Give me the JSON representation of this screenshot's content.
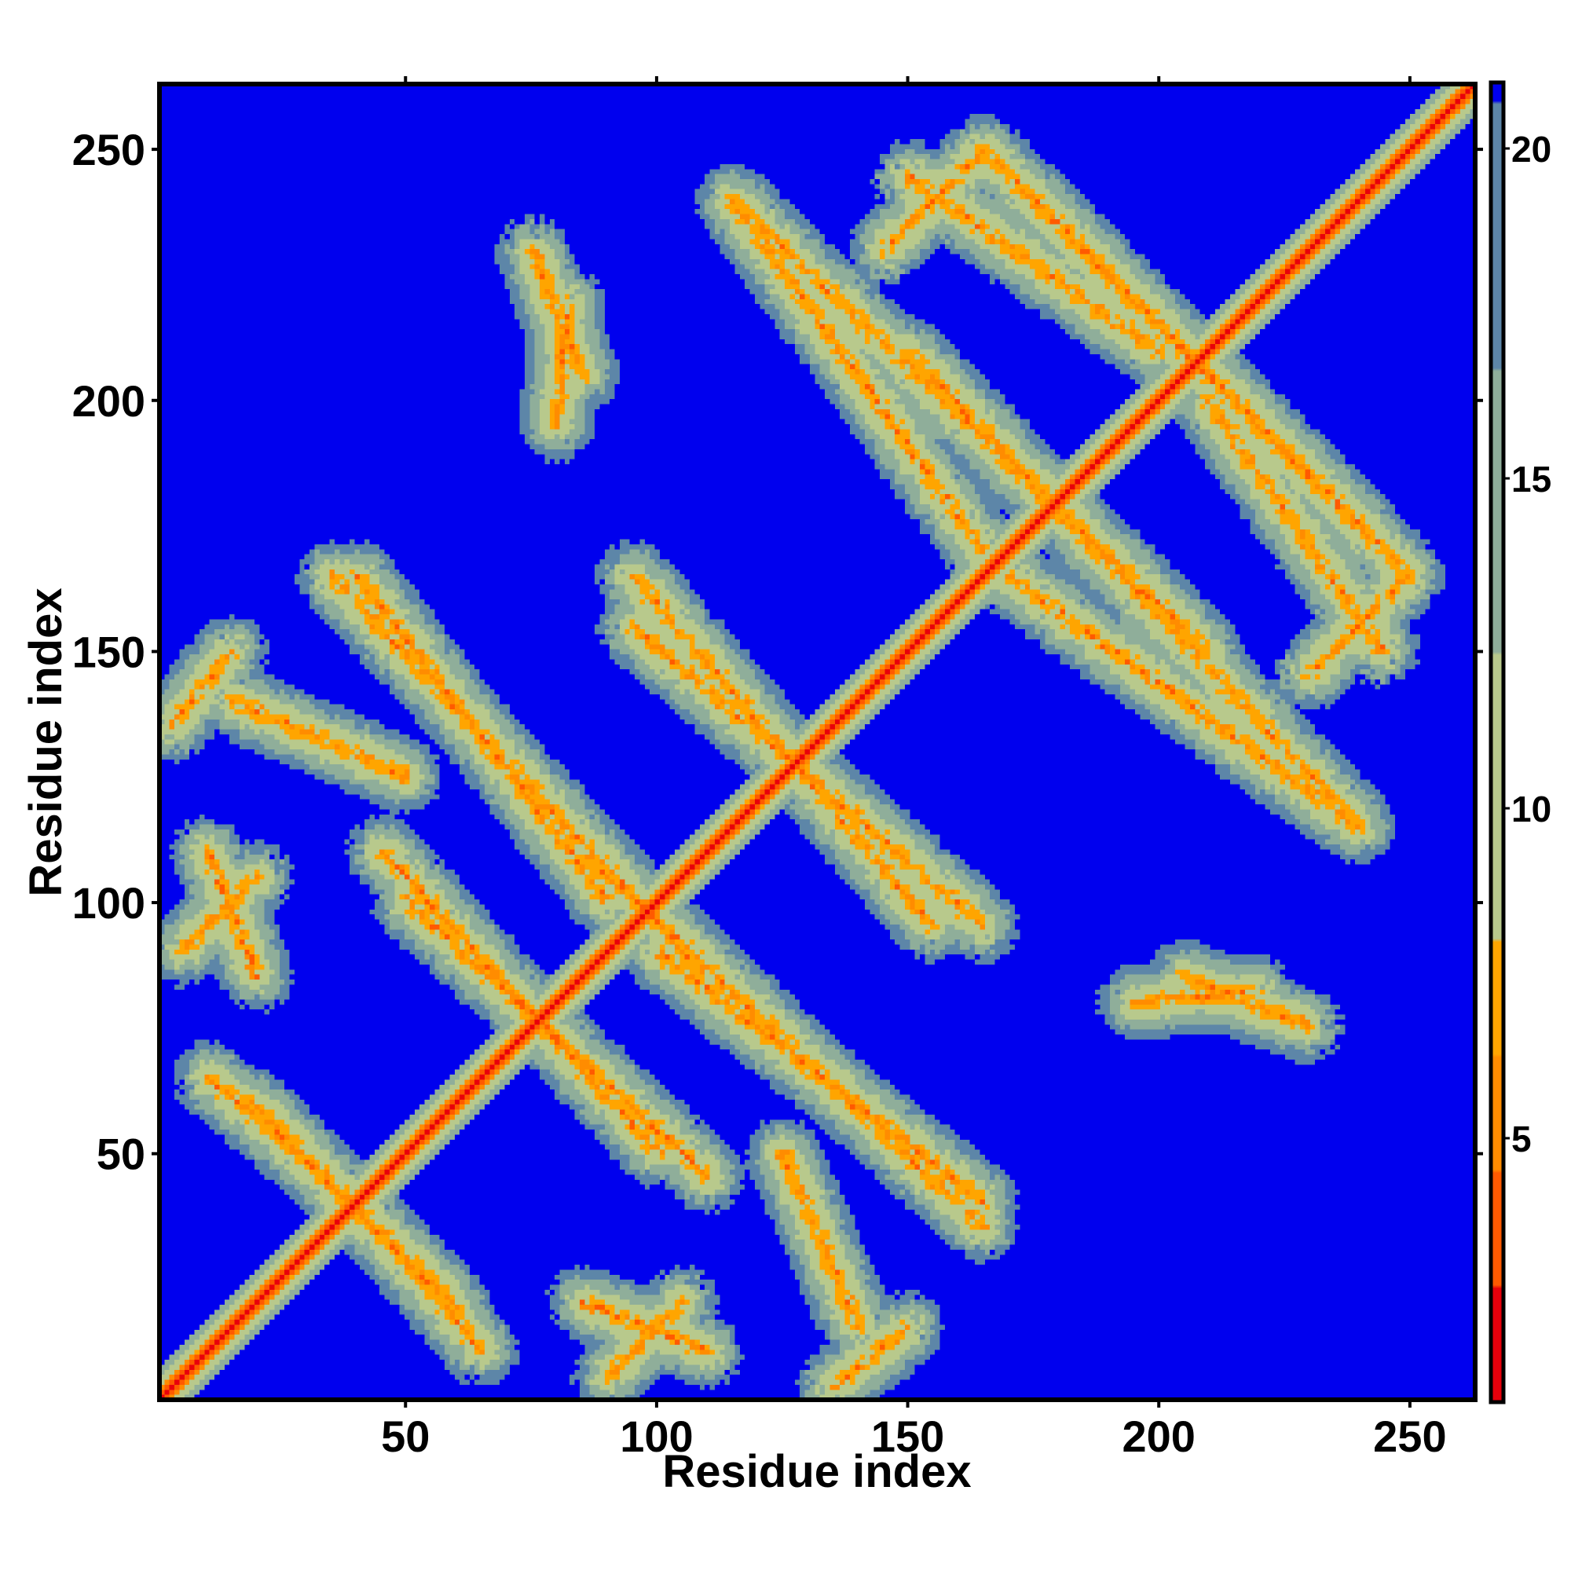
{
  "chart_data": {
    "type": "heatmap",
    "title": "",
    "xlabel": "Residue index",
    "ylabel": "Residue index",
    "n_residues": 263,
    "xlim": [
      1,
      263
    ],
    "ylim": [
      1,
      263
    ],
    "xticks": [
      50,
      100,
      150,
      200,
      250
    ],
    "yticks": [
      50,
      100,
      150,
      200,
      250
    ],
    "colorbar": {
      "range": [
        1,
        21
      ],
      "ticks": [
        5,
        10,
        15,
        20
      ],
      "cutoff": 8,
      "colors_below_cutoff": [
        "#e8000b",
        "#ff5a00",
        "#ff8c00",
        "#ffa500"
      ],
      "colors_above_cutoff": [
        "#b8c98c",
        "#8fae9a",
        "#5d86a8"
      ],
      "background_color": "#0000ee"
    },
    "diagonal_band": {
      "start": 1,
      "end": 263,
      "half_width": 6
    },
    "contact_segments": [
      {
        "from": [
          5,
          90
        ],
        "to": [
          20,
          105
        ],
        "type": "parallel"
      },
      {
        "from": [
          3,
          135
        ],
        "to": [
          15,
          150
        ],
        "type": "parallel"
      },
      {
        "from": [
          10,
          65
        ],
        "to": [
          30,
          48
        ],
        "type": "antiparallel"
      },
      {
        "from": [
          20,
          58
        ],
        "to": [
          60,
          18
        ],
        "type": "antiparallel"
      },
      {
        "from": [
          35,
          165
        ],
        "to": [
          110,
          85
        ],
        "type": "antiparallel"
      },
      {
        "from": [
          45,
          110
        ],
        "to": [
          100,
          50
        ],
        "type": "antiparallel"
      },
      {
        "from": [
          85,
          20
        ],
        "to": [
          110,
          10
        ],
        "type": "parallel"
      },
      {
        "from": [
          125,
          50
        ],
        "to": [
          140,
          15
        ],
        "type": "parallel"
      },
      {
        "from": [
          95,
          155
        ],
        "to": [
          165,
          95
        ],
        "type": "antiparallel"
      },
      {
        "from": [
          100,
          90
        ],
        "to": [
          165,
          40
        ],
        "type": "antiparallel"
      },
      {
        "from": [
          115,
          240
        ],
        "to": [
          210,
          150
        ],
        "type": "antiparallel"
      },
      {
        "from": [
          145,
          230
        ],
        "to": [
          165,
          250
        ],
        "type": "parallel"
      },
      {
        "from": [
          165,
          250
        ],
        "to": [
          240,
          175
        ],
        "type": "antiparallel"
      },
      {
        "from": [
          170,
          165
        ],
        "to": [
          240,
          115
        ],
        "type": "antiparallel"
      },
      {
        "from": [
          210,
          200
        ],
        "to": [
          245,
          150
        ],
        "type": "antiparallel"
      },
      {
        "from": [
          195,
          80
        ],
        "to": [
          220,
          82
        ],
        "type": "parallel"
      },
      {
        "from": [
          75,
          230
        ],
        "to": [
          85,
          205
        ],
        "type": "parallel"
      }
    ]
  }
}
